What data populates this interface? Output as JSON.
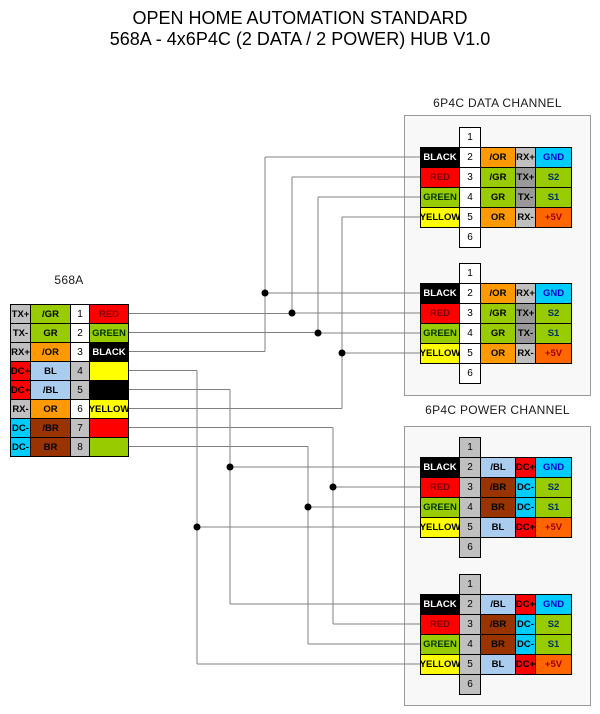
{
  "title": {
    "line1": "OPEN HOME AUTOMATION STANDARD",
    "line2": "568A - 4x6P4C (2 DATA / 2 POWER) HUB V1.0"
  },
  "palette": {
    "gray": "#c0c0c0",
    "gray_dark": "#999999",
    "green": "#99cc00",
    "orange": "#ff9900",
    "orange_dark": "#ff6600",
    "cyan": "#00ccff",
    "red": "#ff0000",
    "yellow": "#ffff00",
    "light_blue": "#aaccee",
    "brown": "#993300",
    "black": "#000000",
    "white": "#ffffff",
    "wire_line": "#808080",
    "text_dark_red": "#7f0000",
    "text_dark_green": "#003300",
    "text_blue": "#0000cc",
    "text_navy": "#003366",
    "text_maroon": "#990000"
  },
  "hub_568a": {
    "label": "568A",
    "rows": [
      {
        "signal": "TX+",
        "signal_bg": "gray",
        "signal_fg": "black",
        "wire": "/GR",
        "wire_bg": "green",
        "pin": "1",
        "pin_bg": "white",
        "out": "RED",
        "out_bg": "red",
        "out_fg": "text_dark_red"
      },
      {
        "signal": "TX-",
        "signal_bg": "gray",
        "signal_fg": "black",
        "wire": "GR",
        "wire_bg": "green",
        "pin": "2",
        "pin_bg": "white",
        "out": "GREEN",
        "out_bg": "green",
        "out_fg": "text_dark_green"
      },
      {
        "signal": "RX+",
        "signal_bg": "gray",
        "signal_fg": "black",
        "wire": "/OR",
        "wire_bg": "orange",
        "pin": "3",
        "pin_bg": "white",
        "out": "BLACK",
        "out_bg": "black",
        "out_fg": "white"
      },
      {
        "signal": "DC+",
        "signal_bg": "red",
        "signal_fg": "black",
        "wire": "BL",
        "wire_bg": "light_blue",
        "pin": "4",
        "pin_bg": "gray",
        "out": "",
        "out_bg": "yellow",
        "out_fg": "black"
      },
      {
        "signal": "DC+",
        "signal_bg": "red",
        "signal_fg": "black",
        "wire": "/BL",
        "wire_bg": "light_blue",
        "pin": "5",
        "pin_bg": "gray",
        "out": "",
        "out_bg": "black",
        "out_fg": "white"
      },
      {
        "signal": "RX-",
        "signal_bg": "gray",
        "signal_fg": "black",
        "wire": "OR",
        "wire_bg": "orange",
        "pin": "6",
        "pin_bg": "white",
        "out": "YELLOW",
        "out_bg": "yellow",
        "out_fg": "black"
      },
      {
        "signal": "DC-",
        "signal_bg": "cyan",
        "signal_fg": "black",
        "wire": "/BR",
        "wire_bg": "brown",
        "pin": "7",
        "pin_bg": "gray",
        "out": "",
        "out_bg": "red",
        "out_fg": "black"
      },
      {
        "signal": "DC-",
        "signal_bg": "cyan",
        "signal_fg": "black",
        "wire": "BR",
        "wire_bg": "brown",
        "pin": "8",
        "pin_bg": "gray",
        "out": "",
        "out_bg": "green",
        "out_fg": "black"
      }
    ]
  },
  "data_channel": {
    "label": "6P4C DATA CHANNEL",
    "pin_top": "1",
    "pin_bottom": "6",
    "pin_bg": "white",
    "connector_rows": [
      {
        "wire": "BLACK",
        "wire_bg": "black",
        "wire_fg": "white",
        "pin": "2",
        "cable": "/OR",
        "cable_bg": "orange",
        "sig": "RX+",
        "sig_bg": "gray",
        "out": "GND",
        "out_bg": "cyan",
        "out_fg": "text_blue"
      },
      {
        "wire": "RED",
        "wire_bg": "red",
        "wire_fg": "text_dark_red",
        "pin": "3",
        "cable": "/GR",
        "cable_bg": "green",
        "sig": "TX+",
        "sig_bg": "gray_dark",
        "out": "S2",
        "out_bg": "green",
        "out_fg": "text_navy"
      },
      {
        "wire": "GREEN",
        "wire_bg": "green",
        "wire_fg": "text_dark_green",
        "pin": "4",
        "cable": "GR",
        "cable_bg": "green",
        "sig": "TX-",
        "sig_bg": "gray_dark",
        "out": "S1",
        "out_bg": "green",
        "out_fg": "text_navy"
      },
      {
        "wire": "YELLOW",
        "wire_bg": "yellow",
        "wire_fg": "black",
        "pin": "5",
        "cable": "OR",
        "cable_bg": "orange",
        "sig": "RX-",
        "sig_bg": "gray",
        "out": "+5V",
        "out_bg": "orange_dark",
        "out_fg": "text_maroon"
      }
    ]
  },
  "power_channel": {
    "label": "6P4C POWER CHANNEL",
    "pin_top": "1",
    "pin_bottom": "6",
    "pin_bg": "gray",
    "connector_rows": [
      {
        "wire": "BLACK",
        "wire_bg": "black",
        "wire_fg": "white",
        "pin": "2",
        "cable": "/BL",
        "cable_bg": "light_blue",
        "sig": "DC+",
        "sig_bg": "red",
        "out": "GND",
        "out_bg": "cyan",
        "out_fg": "text_blue"
      },
      {
        "wire": "RED",
        "wire_bg": "red",
        "wire_fg": "text_dark_red",
        "pin": "3",
        "cable": "/BR",
        "cable_bg": "brown",
        "sig": "DC-",
        "sig_bg": "cyan",
        "out": "S2",
        "out_bg": "green",
        "out_fg": "text_navy"
      },
      {
        "wire": "GREEN",
        "wire_bg": "green",
        "wire_fg": "text_dark_green",
        "pin": "4",
        "cable": "BR",
        "cable_bg": "brown",
        "sig": "DC-",
        "sig_bg": "cyan",
        "out": "S1",
        "out_bg": "green",
        "out_fg": "text_navy"
      },
      {
        "wire": "YELLOW",
        "wire_bg": "yellow",
        "wire_fg": "black",
        "pin": "5",
        "cable": "BL",
        "cable_bg": "light_blue",
        "sig": "DC+",
        "sig_bg": "red",
        "out": "+5V",
        "out_bg": "orange_dark",
        "out_fg": "text_maroon"
      }
    ]
  },
  "wiring": [
    {
      "hub_pin": "1",
      "hub_wire": "/GR",
      "hub_out": "RED",
      "targets": [
        "data-1:RED",
        "data-2:RED"
      ]
    },
    {
      "hub_pin": "2",
      "hub_wire": "GR",
      "hub_out": "GREEN",
      "targets": [
        "data-1:GREEN",
        "data-2:GREEN"
      ]
    },
    {
      "hub_pin": "3",
      "hub_wire": "/OR",
      "hub_out": "BLACK",
      "targets": [
        "data-1:BLACK",
        "data-2:BLACK"
      ]
    },
    {
      "hub_pin": "6",
      "hub_wire": "OR",
      "hub_out": "YELLOW",
      "targets": [
        "data-1:YELLOW",
        "data-2:YELLOW"
      ]
    },
    {
      "hub_pin": "4",
      "hub_wire": "BL",
      "hub_out": "",
      "targets": [
        "power-1:YELLOW",
        "power-2:YELLOW"
      ]
    },
    {
      "hub_pin": "5",
      "hub_wire": "/BL",
      "hub_out": "",
      "targets": [
        "power-1:BLACK",
        "power-2:BLACK"
      ]
    },
    {
      "hub_pin": "7",
      "hub_wire": "/BR",
      "hub_out": "",
      "targets": [
        "power-1:RED",
        "power-2:RED"
      ]
    },
    {
      "hub_pin": "8",
      "hub_wire": "BR",
      "hub_out": "",
      "targets": [
        "power-1:GREEN",
        "power-2:GREEN"
      ]
    }
  ]
}
